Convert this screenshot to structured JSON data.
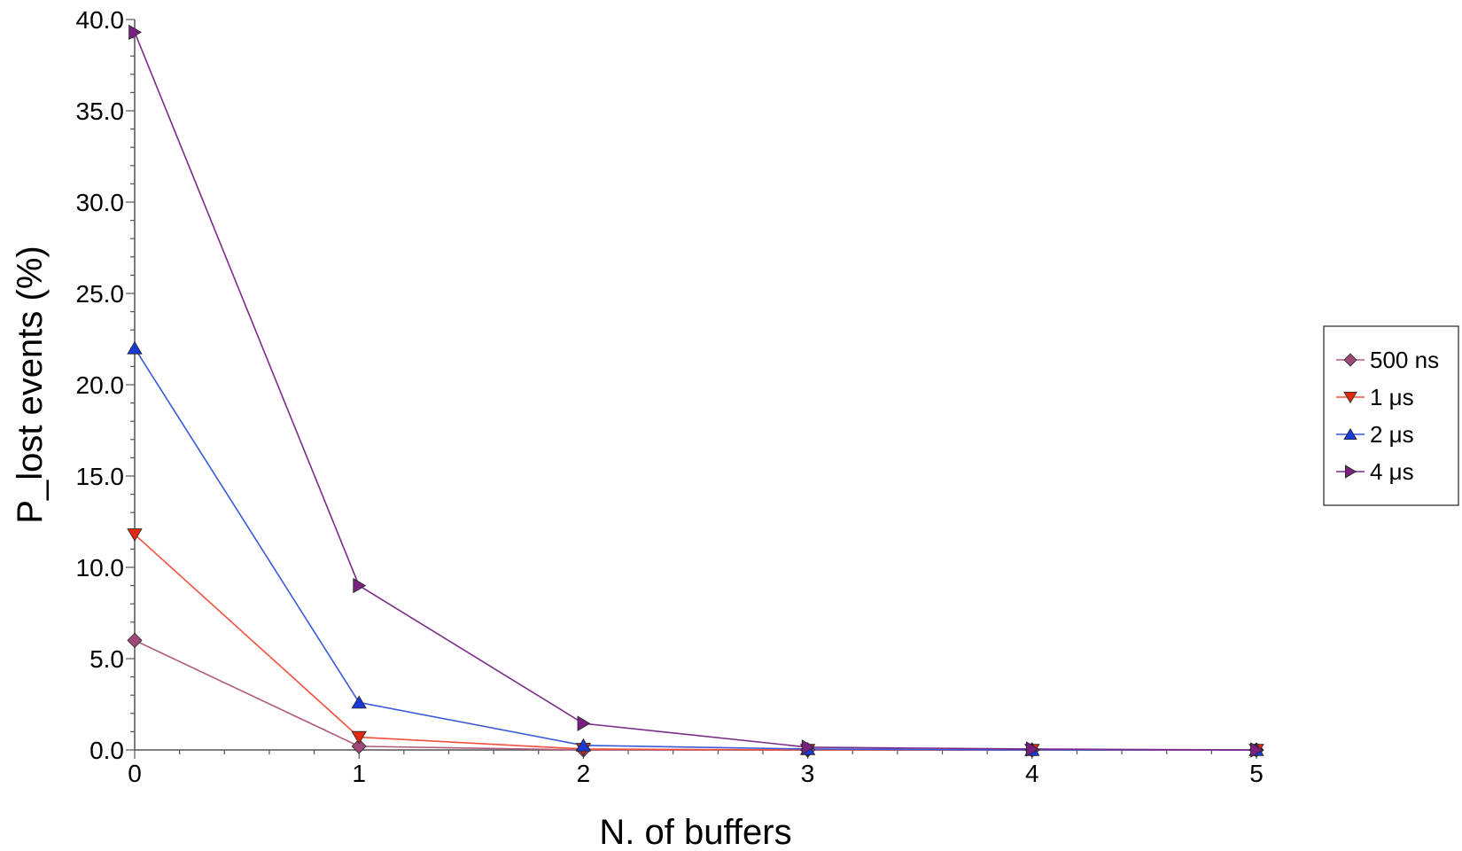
{
  "chart_data": {
    "type": "line",
    "title": "",
    "xlabel": "N. of buffers",
    "ylabel": "P_lost events (%)",
    "x": [
      0,
      1,
      2,
      3,
      4,
      5
    ],
    "xlim": [
      0,
      5
    ],
    "ylim": [
      0,
      40
    ],
    "x_ticks": [
      "0",
      "1",
      "2",
      "3",
      "4",
      "5"
    ],
    "y_ticks": [
      "0.0",
      "5.0",
      "10.0",
      "15.0",
      "20.0",
      "25.0",
      "30.0",
      "35.0",
      "40.0"
    ],
    "grid": false,
    "legend_position": "right",
    "series": [
      {
        "name": "500 ns",
        "values": [
          6.0,
          0.2,
          0.0,
          0.0,
          0.0,
          0.0
        ],
        "color": "#b05c7e",
        "marker_color": "#9e4a78",
        "marker": "diamond"
      },
      {
        "name": "1 μs",
        "values": [
          11.8,
          0.7,
          0.05,
          0.0,
          0.0,
          0.0
        ],
        "color": "#f0503c",
        "marker_color": "#e02a10",
        "marker": "triangle-down"
      },
      {
        "name": "2 μs",
        "values": [
          22.0,
          2.6,
          0.25,
          0.05,
          0.0,
          0.0
        ],
        "color": "#3a5ad8",
        "marker_color": "#1a3ad6",
        "marker": "triangle-up"
      },
      {
        "name": "4 μs",
        "values": [
          39.3,
          9.0,
          1.45,
          0.15,
          0.05,
          0.0
        ],
        "color": "#7a2d88",
        "marker_color": "#7a2080",
        "marker": "triangle-right"
      }
    ]
  }
}
